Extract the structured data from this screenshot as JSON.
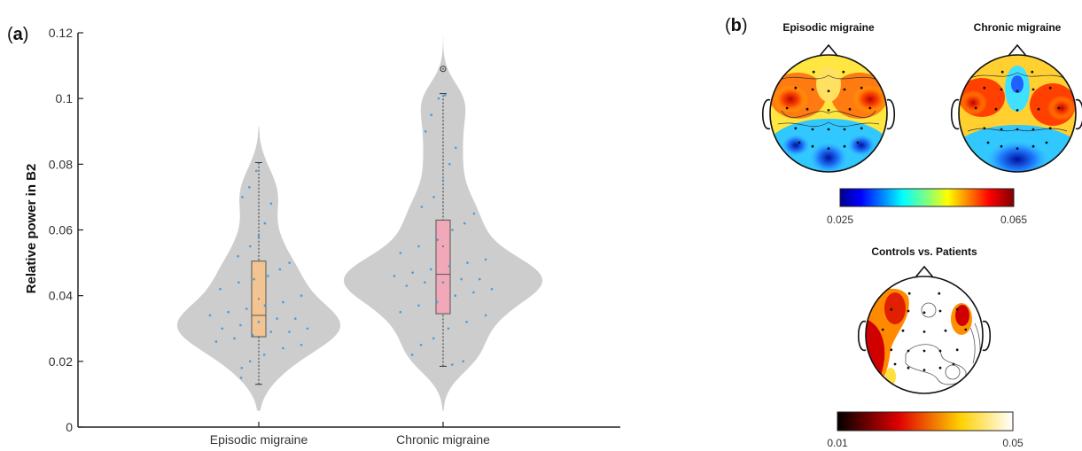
{
  "panel_a": {
    "label_open": "(",
    "label_letter": "a",
    "label_close": ")"
  },
  "panel_b": {
    "label_open": "(",
    "label_letter": "b",
    "label_close": ")",
    "maps": [
      {
        "title": "Episodic migraine"
      },
      {
        "title": "Chronic migraine"
      },
      {
        "title": "Controls vs. Patients"
      }
    ],
    "colorbar_jet": {
      "min_label": "0.025",
      "max_label": "0.065"
    },
    "colorbar_hot": {
      "min_label": "0.01",
      "max_label": "0.05"
    }
  },
  "chart_data": [
    {
      "type": "violin",
      "xlabel": "",
      "ylabel": "Relative power in B2",
      "ylim": [
        0,
        0.12
      ],
      "yticks": [
        "0",
        "0.02",
        "0.04",
        "0.06",
        "0.08",
        "0.1",
        "0.12"
      ],
      "ytick_values": [
        0,
        0.02,
        0.04,
        0.06,
        0.08,
        0.1,
        0.12
      ],
      "categories": [
        "Episodic migraine",
        "Chronic migraine"
      ],
      "series": [
        {
          "name": "Episodic migraine",
          "box_color": "#f2c491",
          "box": {
            "min": 0.013,
            "q1": 0.0275,
            "median": 0.034,
            "q3": 0.0505,
            "max": 0.0805,
            "mean": 0.039
          },
          "violin_extent": [
            0.005,
            0.092
          ],
          "points": [
            0.015,
            0.018,
            0.02,
            0.022,
            0.024,
            0.025,
            0.026,
            0.027,
            0.028,
            0.029,
            0.029,
            0.03,
            0.03,
            0.031,
            0.032,
            0.033,
            0.033,
            0.034,
            0.035,
            0.036,
            0.037,
            0.038,
            0.04,
            0.042,
            0.044,
            0.045,
            0.046,
            0.048,
            0.05,
            0.052,
            0.055,
            0.058,
            0.062,
            0.068,
            0.07,
            0.073,
            0.078
          ]
        },
        {
          "name": "Chronic migraine",
          "box_color": "#f1a8b8",
          "box": {
            "min": 0.0185,
            "q1": 0.0345,
            "median": 0.0465,
            "q3": 0.063,
            "max": 0.1015,
            "mean": 0.055
          },
          "outliers": [
            0.109
          ],
          "violin_extent": [
            0.005,
            0.12
          ],
          "points": [
            0.019,
            0.02,
            0.022,
            0.025,
            0.027,
            0.03,
            0.032,
            0.034,
            0.035,
            0.037,
            0.038,
            0.04,
            0.041,
            0.042,
            0.043,
            0.044,
            0.044,
            0.045,
            0.045,
            0.046,
            0.047,
            0.048,
            0.049,
            0.05,
            0.051,
            0.053,
            0.055,
            0.057,
            0.06,
            0.062,
            0.065,
            0.067,
            0.07,
            0.075,
            0.08,
            0.085,
            0.09,
            0.095,
            0.1,
            0.101
          ]
        }
      ]
    }
  ],
  "colors": {
    "violin_fill": "#cdcdcd",
    "point_color": "#4a9bd9",
    "axis": "#222222"
  }
}
